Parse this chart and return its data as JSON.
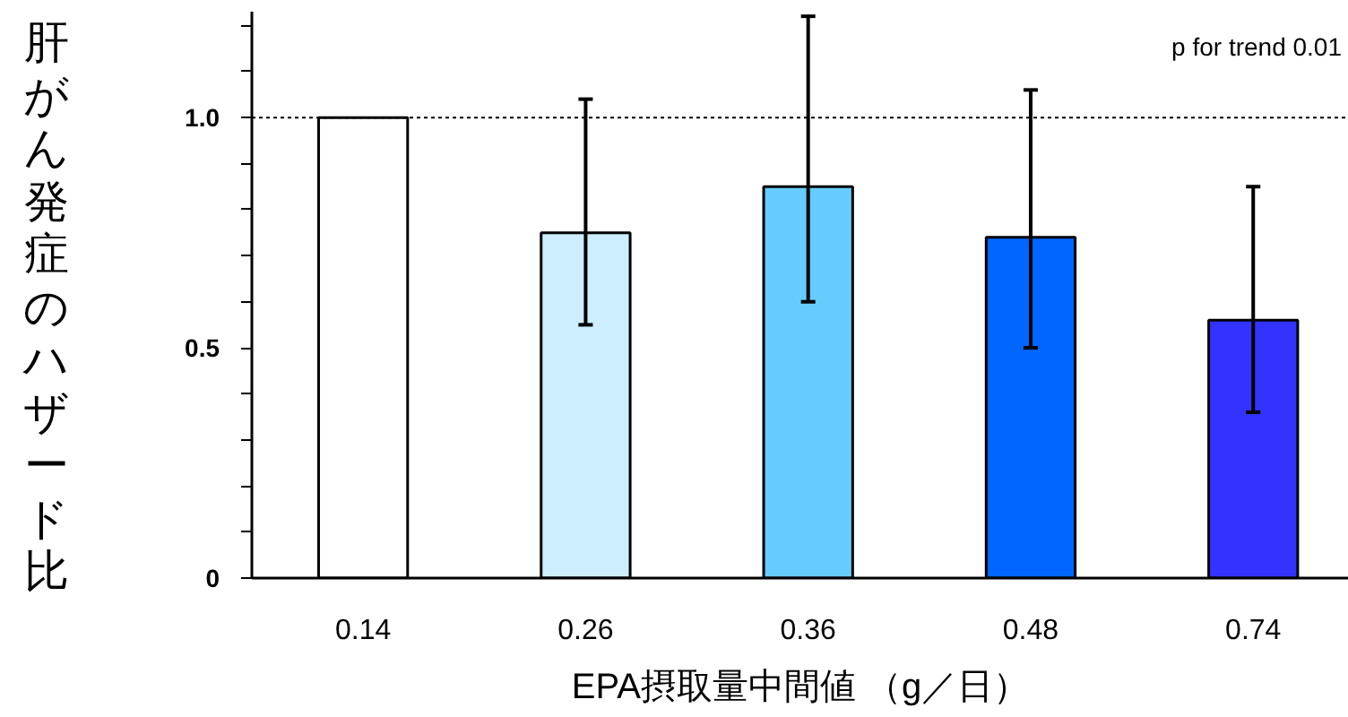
{
  "chart_data": {
    "type": "bar",
    "xlabel": "EPA摂取量中間値 （g／日）",
    "ylabel": "肝がん発症のハザード比",
    "categories": [
      "0.14",
      "0.26",
      "0.36",
      "0.48",
      "0.74"
    ],
    "values": [
      1.0,
      0.75,
      0.85,
      0.74,
      0.56
    ],
    "colors": [
      "#ffffff",
      "#cceeff",
      "#66ccff",
      "#0066ff",
      "#3333ff"
    ],
    "errors": [
      null,
      [
        0.55,
        1.04
      ],
      [
        0.6,
        1.22
      ],
      [
        0.5,
        1.06
      ],
      [
        0.36,
        0.85
      ]
    ],
    "ylim": [
      0,
      1.23
    ],
    "yticks": [
      0,
      {
        "value": 0.1,
        "label": null
      },
      {
        "value": 0.2,
        "label": null
      },
      {
        "value": 0.3,
        "label": null
      },
      {
        "value": 0.4,
        "label": null
      },
      0.5,
      {
        "value": 0.6,
        "label": null
      },
      {
        "value": 0.7,
        "label": null
      },
      {
        "value": 0.8,
        "label": null
      },
      {
        "value": 0.9,
        "label": null
      },
      {
        "value": 1,
        "label": "1.0"
      },
      {
        "value": 1.1,
        "label": null
      },
      {
        "value": 1.2,
        "label": null
      }
    ],
    "ref_lines": [
      {
        "axis": "y",
        "value": 1,
        "color": "#000000",
        "line_style": "dotted"
      }
    ],
    "annotations": [
      "p for trend 0.01"
    ]
  }
}
